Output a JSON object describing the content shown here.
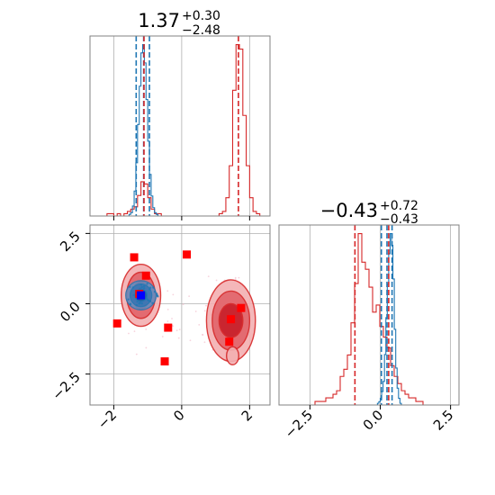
{
  "chart_data": {
    "type": "corner",
    "colors": {
      "red": "#d62728",
      "blue": "#1f77b4",
      "marker_red": "#ff0000",
      "marker_blue": "#0000ff",
      "grid": "#b0b0b0"
    },
    "grid": true,
    "param1": {
      "title": {
        "value": "1.37",
        "upper": "+0.30",
        "lower": "−2.48"
      },
      "xlim": [
        -2.7,
        2.6
      ],
      "xticks": [
        -2,
        0,
        2
      ],
      "xtick_labels": [
        "−2",
        "0",
        "2"
      ],
      "red_quantiles": [
        -1.11,
        1.67
      ],
      "blue_quantiles": [
        -1.34,
        -1.12,
        -0.95
      ]
    },
    "param2": {
      "title": {
        "value": "−0.43",
        "upper": "+0.72",
        "lower": "−0.43"
      },
      "xlim": [
        -3.6,
        2.8
      ],
      "xticks": [
        -2.5,
        0.0,
        2.5
      ],
      "xtick_labels": [
        "−2.5",
        "0.0",
        "2.5"
      ],
      "yticks": [
        2.5,
        0.0,
        -2.5
      ],
      "ytick_labels": [
        "2.5",
        "0.0",
        "−2.5"
      ],
      "red_quantiles": [
        -0.9,
        0.3
      ],
      "blue_quantiles": [
        0.04,
        0.24,
        0.42
      ]
    },
    "hist1_red": {
      "x0": -2.7,
      "dx": 0.1,
      "counts": [
        0,
        0,
        0,
        0,
        0,
        1,
        1,
        0,
        1,
        0,
        1,
        2,
        3,
        4,
        9,
        15,
        14,
        8,
        3,
        1,
        1,
        0,
        0,
        0,
        0,
        0,
        0,
        0,
        0,
        0,
        0,
        0,
        0,
        0,
        0,
        0,
        0,
        0,
        1,
        2,
        8,
        22,
        55,
        75,
        73,
        44,
        22,
        8,
        2,
        1,
        0,
        0,
        0
      ]
    },
    "hist1_blue": {
      "x0": -1.6,
      "dx": 0.05,
      "counts": [
        0,
        1,
        2,
        6,
        15,
        32,
        55,
        78,
        98,
        103,
        92,
        70,
        45,
        25,
        12,
        5,
        2,
        1,
        0,
        0
      ]
    },
    "hist2_red": {
      "x0": -3.6,
      "dx": 0.128,
      "counts": [
        0,
        0,
        0,
        0,
        0,
        0,
        0,
        0,
        0,
        0,
        1,
        1,
        1,
        2,
        2,
        3,
        4,
        8,
        10,
        14,
        23,
        34,
        48,
        40,
        38,
        33,
        26,
        28,
        22,
        19,
        16,
        11,
        8,
        6,
        4,
        3,
        2,
        2,
        1,
        1,
        0,
        0,
        0,
        0,
        0,
        0,
        0,
        0,
        0,
        0
      ]
    },
    "hist2_blue": {
      "x0": -0.15,
      "dx": 0.05,
      "counts": [
        0,
        1,
        2,
        4,
        8,
        14,
        30,
        52,
        72,
        90,
        102,
        95,
        75,
        45,
        22,
        10,
        4,
        1,
        0
      ]
    },
    "points": {
      "red": [
        [
          -1.4,
          1.65
        ],
        [
          0.15,
          1.75
        ],
        [
          -1.05,
          1.0
        ],
        [
          -1.25,
          0.35
        ],
        [
          -1.9,
          -0.7
        ],
        [
          -0.4,
          -0.85
        ],
        [
          -0.5,
          -2.05
        ],
        [
          1.45,
          -0.55
        ],
        [
          1.75,
          -0.15
        ],
        [
          1.4,
          -1.35
        ]
      ],
      "blue": [
        [
          -1.2,
          0.3
        ]
      ]
    },
    "contours_red": {
      "cluster_a": {
        "cx": -1.2,
        "cy": 0.3,
        "levels": [
          [
            0.25,
            0.5
          ],
          [
            0.42,
            0.82
          ],
          [
            0.58,
            1.1
          ]
        ]
      },
      "cluster_b": {
        "cx": 1.45,
        "cy": -0.6,
        "levels": [
          [
            0.35,
            0.6
          ],
          [
            0.55,
            1.05
          ],
          [
            0.72,
            1.45
          ]
        ]
      }
    },
    "contours_blue": {
      "cx": -1.2,
      "cy": 0.3,
      "levels": [
        [
          0.18,
          0.22
        ],
        [
          0.32,
          0.4
        ],
        [
          0.45,
          0.52
        ]
      ]
    }
  }
}
